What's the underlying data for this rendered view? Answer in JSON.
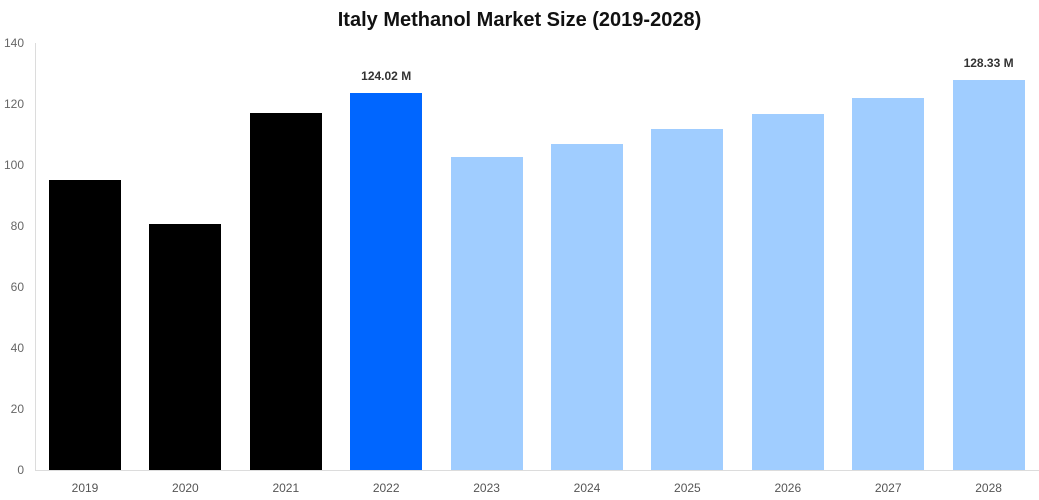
{
  "chart_data": {
    "type": "bar",
    "title": "Italy Methanol Market Size (2019-2028)",
    "xlabel": "",
    "ylabel": "",
    "ylim": [
      0,
      140
    ],
    "yticks": [
      0,
      20,
      40,
      60,
      80,
      100,
      120,
      140
    ],
    "grid": false,
    "legend": null,
    "categories": [
      "2019",
      "2020",
      "2021",
      "2022",
      "2023",
      "2024",
      "2025",
      "2026",
      "2027",
      "2028"
    ],
    "values": [
      95.4,
      81.0,
      117.4,
      124.02,
      103.0,
      107.2,
      112.0,
      117.0,
      122.3,
      128.33
    ],
    "colors": [
      "#000000",
      "#000000",
      "#000000",
      "#0066ff",
      "#a0cdff",
      "#a0cdff",
      "#a0cdff",
      "#a0cdff",
      "#a0cdff",
      "#a0cdff"
    ],
    "annotations": [
      {
        "category": "2022",
        "text": "124.02 M"
      },
      {
        "category": "2028",
        "text": "128.33 M"
      }
    ]
  }
}
